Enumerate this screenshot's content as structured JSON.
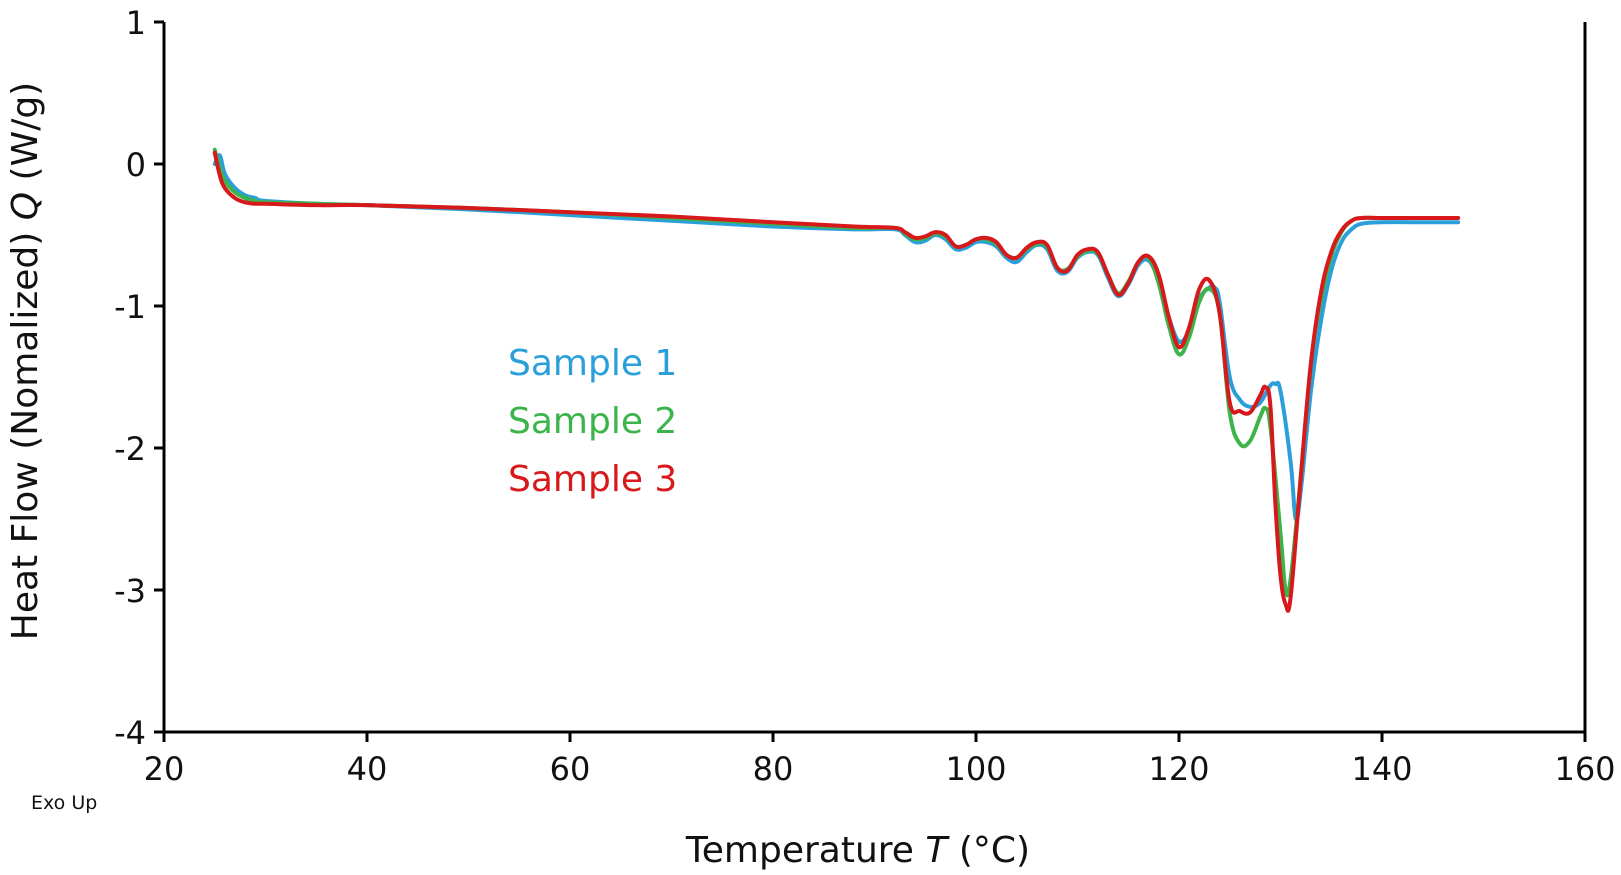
{
  "chart_data": {
    "type": "line",
    "title": "",
    "xlabel": "Temperature",
    "xlabel_symbol": "T",
    "xlabel_unit": "(°C)",
    "ylabel": "Heat Flow (Nomalized)",
    "ylabel_symbol": "Q",
    "ylabel_unit": "(W/g)",
    "xlim": [
      20,
      160
    ],
    "ylim": [
      -4,
      1
    ],
    "xticks": [
      20,
      40,
      60,
      80,
      100,
      120,
      140,
      160
    ],
    "yticks": [
      1,
      0,
      -1,
      -2,
      -3,
      -4
    ],
    "xtick_labels": [
      "20",
      "40",
      "60",
      "80",
      "100",
      "120",
      "140",
      "160"
    ],
    "ytick_labels": [
      "1",
      "0",
      "-1",
      "-2",
      "-3",
      "-4"
    ],
    "grid": false,
    "legend_position": "center-left",
    "annotation": "Exo Up",
    "series": [
      {
        "name": "Sample 1",
        "color": "#2B9FD9",
        "x": [
          25,
          25.5,
          26,
          27,
          28,
          29,
          30,
          35,
          40,
          50,
          60,
          70,
          80,
          88,
          92,
          93,
          94,
          95,
          96,
          97,
          98,
          99,
          100,
          101,
          102,
          103,
          104,
          105,
          106,
          107,
          108,
          109,
          110,
          111,
          112,
          113,
          114,
          115,
          116,
          117,
          118,
          119,
          120,
          121,
          122,
          123,
          123.5,
          124,
          125,
          126,
          127,
          128,
          129,
          129.5,
          130,
          131,
          131.5,
          132,
          133,
          134,
          135,
          136,
          137,
          138,
          140,
          143,
          147.5
        ],
        "y": [
          0,
          0.06,
          -0.07,
          -0.17,
          -0.22,
          -0.24,
          -0.26,
          -0.28,
          -0.29,
          -0.32,
          -0.36,
          -0.4,
          -0.44,
          -0.46,
          -0.46,
          -0.5,
          -0.55,
          -0.54,
          -0.5,
          -0.53,
          -0.6,
          -0.59,
          -0.55,
          -0.55,
          -0.58,
          -0.66,
          -0.69,
          -0.62,
          -0.57,
          -0.6,
          -0.75,
          -0.76,
          -0.66,
          -0.62,
          -0.64,
          -0.8,
          -0.93,
          -0.85,
          -0.71,
          -0.68,
          -0.82,
          -1.08,
          -1.25,
          -1.17,
          -0.95,
          -0.87,
          -0.87,
          -0.97,
          -1.5,
          -1.66,
          -1.71,
          -1.68,
          -1.56,
          -1.55,
          -1.6,
          -2.1,
          -2.5,
          -2.3,
          -1.6,
          -1.1,
          -0.75,
          -0.55,
          -0.46,
          -0.42,
          -0.41,
          -0.41,
          -0.41
        ]
      },
      {
        "name": "Sample 2",
        "color": "#3CB44B",
        "x": [
          25,
          25.5,
          26,
          27,
          28,
          29,
          30,
          35,
          40,
          50,
          60,
          70,
          80,
          88,
          92,
          93,
          94,
          95,
          96,
          97,
          98,
          99,
          100,
          101,
          102,
          103,
          104,
          105,
          106,
          107,
          108,
          109,
          110,
          111,
          112,
          113,
          114,
          115,
          116,
          117,
          118,
          119,
          120,
          121,
          122,
          123,
          124,
          125,
          126,
          127,
          128,
          128.5,
          129,
          130,
          130.5,
          131,
          132,
          133,
          134,
          135,
          136,
          137,
          138,
          140,
          143,
          147.5
        ],
        "y": [
          0.1,
          -0.03,
          -0.12,
          -0.2,
          -0.24,
          -0.26,
          -0.27,
          -0.28,
          -0.29,
          -0.31,
          -0.34,
          -0.38,
          -0.42,
          -0.45,
          -0.45,
          -0.49,
          -0.53,
          -0.52,
          -0.49,
          -0.51,
          -0.58,
          -0.57,
          -0.53,
          -0.53,
          -0.56,
          -0.64,
          -0.66,
          -0.6,
          -0.56,
          -0.58,
          -0.73,
          -0.74,
          -0.65,
          -0.61,
          -0.63,
          -0.78,
          -0.91,
          -0.83,
          -0.69,
          -0.66,
          -0.84,
          -1.14,
          -1.34,
          -1.22,
          -0.97,
          -0.88,
          -1.05,
          -1.75,
          -1.97,
          -1.95,
          -1.78,
          -1.72,
          -1.85,
          -2.6,
          -3.0,
          -2.92,
          -2.2,
          -1.4,
          -0.95,
          -0.65,
          -0.48,
          -0.4,
          -0.38,
          -0.38,
          -0.38,
          -0.38
        ]
      },
      {
        "name": "Sample 3",
        "color": "#D7191C",
        "x": [
          25,
          25.5,
          26,
          27,
          28,
          29,
          30,
          35,
          40,
          50,
          60,
          70,
          80,
          88,
          92,
          93,
          94,
          95,
          96,
          97,
          98,
          99,
          100,
          101,
          102,
          103,
          104,
          105,
          106,
          107,
          108,
          109,
          110,
          111,
          112,
          113,
          114,
          115,
          116,
          117,
          118,
          119,
          120,
          121,
          122,
          123,
          124,
          125,
          126,
          127,
          128,
          128.5,
          129,
          129.5,
          130,
          130.5,
          131,
          132,
          133,
          134,
          135,
          136,
          137,
          138,
          140,
          143,
          147.5
        ],
        "y": [
          0.08,
          -0.08,
          -0.17,
          -0.24,
          -0.27,
          -0.28,
          -0.28,
          -0.29,
          -0.29,
          -0.31,
          -0.34,
          -0.37,
          -0.41,
          -0.44,
          -0.45,
          -0.48,
          -0.52,
          -0.51,
          -0.48,
          -0.5,
          -0.58,
          -0.57,
          -0.53,
          -0.52,
          -0.55,
          -0.64,
          -0.66,
          -0.59,
          -0.55,
          -0.57,
          -0.73,
          -0.75,
          -0.64,
          -0.6,
          -0.62,
          -0.78,
          -0.92,
          -0.84,
          -0.69,
          -0.65,
          -0.78,
          -1.08,
          -1.29,
          -1.15,
          -0.88,
          -0.82,
          -1.05,
          -1.68,
          -1.74,
          -1.75,
          -1.63,
          -1.57,
          -1.7,
          -2.4,
          -2.9,
          -3.1,
          -3.05,
          -2.2,
          -1.4,
          -0.9,
          -0.62,
          -0.47,
          -0.4,
          -0.38,
          -0.38,
          -0.38,
          -0.38
        ]
      }
    ]
  }
}
